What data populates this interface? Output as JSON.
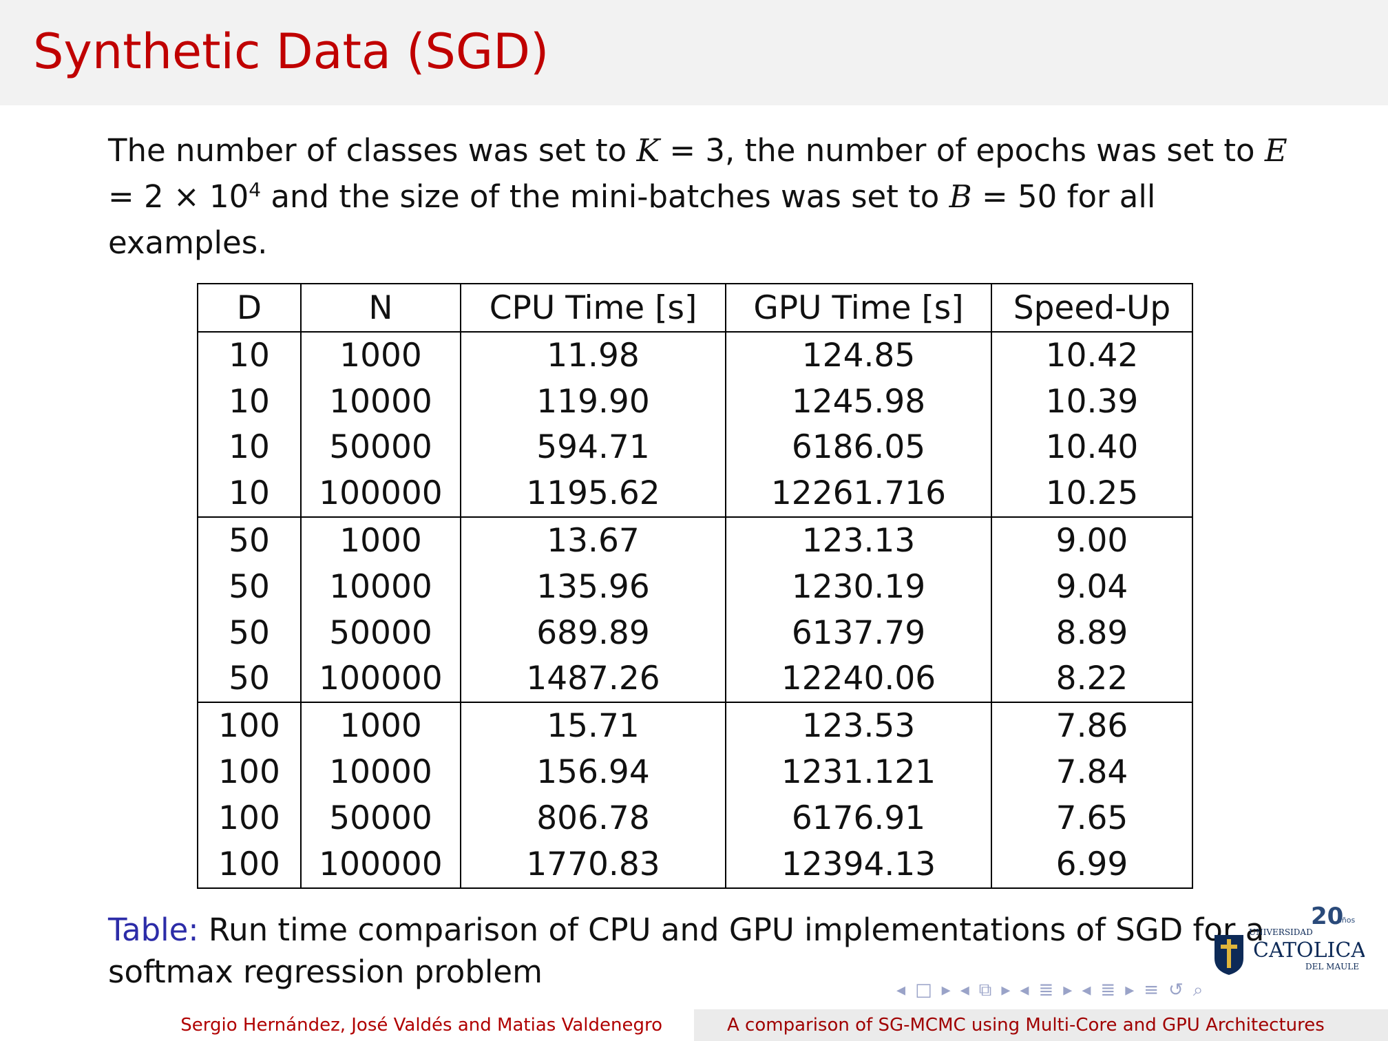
{
  "slide": {
    "title": "Synthetic Data (SGD)"
  },
  "intro": {
    "part1": "The number of classes was set to ",
    "K_var": "K",
    "K_eq": " = 3, the number of epochs was set to ",
    "E_var": "E",
    "E_eq": " = 2 × 10",
    "E_exp": "4",
    "part2": " and the size of the mini-batches was set to ",
    "B_var": "B",
    "B_eq": " = 50 for all examples."
  },
  "table": {
    "headers": [
      "D",
      "N",
      "CPU Time [s]",
      "GPU Time [s]",
      "Speed-Up"
    ],
    "rows": [
      [
        "10",
        "1000",
        "11.98",
        "124.85",
        "10.42"
      ],
      [
        "10",
        "10000",
        "119.90",
        "1245.98",
        "10.39"
      ],
      [
        "10",
        "50000",
        "594.71",
        "6186.05",
        "10.40"
      ],
      [
        "10",
        "100000",
        "1195.62",
        "12261.716",
        "10.25"
      ],
      [
        "50",
        "1000",
        "13.67",
        "123.13",
        "9.00"
      ],
      [
        "50",
        "10000",
        "135.96",
        "1230.19",
        "9.04"
      ],
      [
        "50",
        "50000",
        "689.89",
        "6137.79",
        "8.89"
      ],
      [
        "50",
        "100000",
        "1487.26",
        "12240.06",
        "8.22"
      ],
      [
        "100",
        "1000",
        "15.71",
        "123.53",
        "7.86"
      ],
      [
        "100",
        "10000",
        "156.94",
        "1231.121",
        "7.84"
      ],
      [
        "100",
        "50000",
        "806.78",
        "6176.91",
        "7.65"
      ],
      [
        "100",
        "100000",
        "1770.83",
        "12394.13",
        "6.99"
      ]
    ]
  },
  "caption": {
    "label": "Table:",
    "text": " Run time comparison of CPU and GPU implementations of SGD for a softmax regression problem"
  },
  "logo": {
    "line1": "UNIVERSIDAD",
    "line2": "CATOLICA",
    "line3": "DEL MAULE",
    "badge": "20",
    "badge_suffix": "años"
  },
  "footer": {
    "authors": "Sergio Hernández, José Valdés and Matias Valdenegro",
    "talk_title": "A comparison of SG-MCMC using Multi-Core and GPU Architectures"
  },
  "nav": {
    "icons": [
      "nav-prev-frame",
      "nav-frame",
      "nav-next-frame",
      "nav-prev-subsection",
      "nav-subsection",
      "nav-next-subsection",
      "nav-prev-section",
      "nav-section",
      "nav-next-section",
      "nav-prev-slide",
      "nav-slide",
      "nav-next-slide",
      "nav-align",
      "nav-back",
      "nav-search"
    ]
  }
}
